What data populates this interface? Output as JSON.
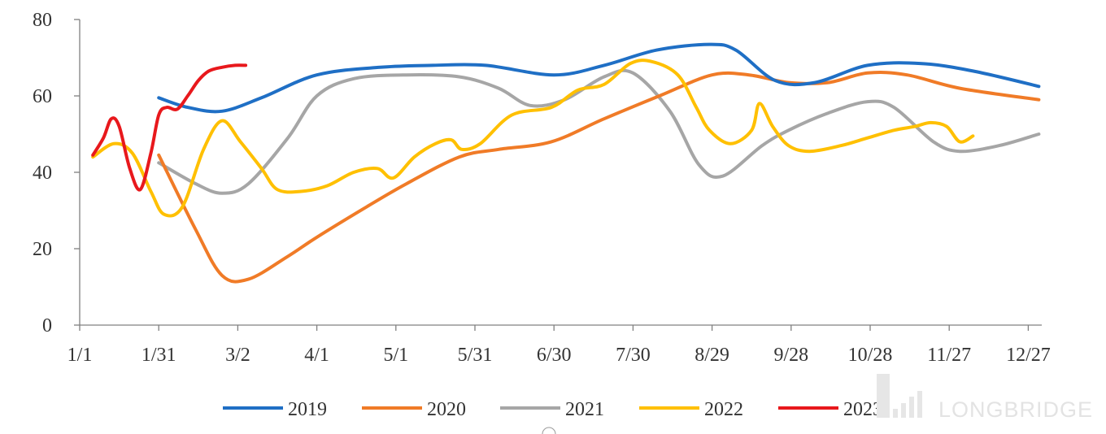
{
  "chart_data": {
    "type": "line",
    "title": "",
    "xlabel": "",
    "ylabel": "",
    "x_unit": "day of year (tick labels shown as month/day)",
    "xlim": [
      1,
      361
    ],
    "ylim": [
      0,
      80
    ],
    "x_ticks": [
      {
        "day": 1,
        "label": "1/1"
      },
      {
        "day": 31,
        "label": "1/31"
      },
      {
        "day": 61,
        "label": "3/2"
      },
      {
        "day": 91,
        "label": "4/1"
      },
      {
        "day": 121,
        "label": "5/1"
      },
      {
        "day": 151,
        "label": "5/31"
      },
      {
        "day": 181,
        "label": "6/30"
      },
      {
        "day": 211,
        "label": "7/30"
      },
      {
        "day": 241,
        "label": "8/29"
      },
      {
        "day": 271,
        "label": "9/28"
      },
      {
        "day": 301,
        "label": "10/28"
      },
      {
        "day": 331,
        "label": "11/27"
      },
      {
        "day": 361,
        "label": "12/27"
      }
    ],
    "y_ticks": [
      0,
      20,
      40,
      60,
      80
    ],
    "grid": false,
    "legend": "bottom",
    "series": [
      {
        "name": "2019",
        "color": "#1f6fc5",
        "points": [
          [
            31,
            59.5
          ],
          [
            42,
            57
          ],
          [
            55,
            56
          ],
          [
            70,
            59.5
          ],
          [
            91,
            65.5
          ],
          [
            115,
            67.5
          ],
          [
            135,
            68
          ],
          [
            155,
            68
          ],
          [
            181,
            65.5
          ],
          [
            200,
            68
          ],
          [
            220,
            72
          ],
          [
            240,
            73.5
          ],
          [
            250,
            72
          ],
          [
            265,
            64
          ],
          [
            280,
            63.5
          ],
          [
            300,
            68
          ],
          [
            320,
            68.5
          ],
          [
            340,
            66.5
          ],
          [
            365,
            62.5
          ]
        ]
      },
      {
        "name": "2020",
        "color": "#f07b27",
        "points": [
          [
            31,
            44.5
          ],
          [
            45,
            25
          ],
          [
            55,
            13
          ],
          [
            65,
            12
          ],
          [
            80,
            18
          ],
          [
            91,
            23
          ],
          [
            110,
            31
          ],
          [
            125,
            37
          ],
          [
            145,
            44
          ],
          [
            160,
            46
          ],
          [
            180,
            48
          ],
          [
            200,
            54
          ],
          [
            221,
            60
          ],
          [
            241,
            65.5
          ],
          [
            255,
            65.5
          ],
          [
            270,
            63.5
          ],
          [
            285,
            63.5
          ],
          [
            300,
            66
          ],
          [
            315,
            65.5
          ],
          [
            335,
            62
          ],
          [
            365,
            59
          ]
        ]
      },
      {
        "name": "2021",
        "color": "#a6a6a6",
        "points": [
          [
            31,
            42.5
          ],
          [
            45,
            37
          ],
          [
            55,
            34.5
          ],
          [
            65,
            37
          ],
          [
            80,
            49
          ],
          [
            91,
            60
          ],
          [
            105,
            64.5
          ],
          [
            125,
            65.5
          ],
          [
            145,
            65
          ],
          [
            160,
            62
          ],
          [
            172,
            57.5
          ],
          [
            185,
            59
          ],
          [
            200,
            65
          ],
          [
            211,
            66
          ],
          [
            225,
            56
          ],
          [
            236,
            42
          ],
          [
            245,
            39
          ],
          [
            260,
            47
          ],
          [
            270,
            51
          ],
          [
            285,
            55.5
          ],
          [
            300,
            58.5
          ],
          [
            310,
            57
          ],
          [
            325,
            48
          ],
          [
            335,
            45.5
          ],
          [
            350,
            47
          ],
          [
            365,
            50
          ]
        ]
      },
      {
        "name": "2022",
        "color": "#ffc000",
        "points": [
          [
            6,
            44
          ],
          [
            14,
            47.5
          ],
          [
            21,
            45
          ],
          [
            28,
            35
          ],
          [
            33,
            29
          ],
          [
            40,
            31
          ],
          [
            48,
            46
          ],
          [
            55,
            53.5
          ],
          [
            62,
            48
          ],
          [
            70,
            41
          ],
          [
            76,
            35.5
          ],
          [
            85,
            35
          ],
          [
            95,
            36.5
          ],
          [
            105,
            40
          ],
          [
            114,
            41
          ],
          [
            120,
            38.5
          ],
          [
            128,
            44
          ],
          [
            136,
            47.5
          ],
          [
            142,
            48.5
          ],
          [
            146,
            46
          ],
          [
            153,
            47.5
          ],
          [
            165,
            55
          ],
          [
            180,
            57
          ],
          [
            190,
            61.5
          ],
          [
            200,
            63
          ],
          [
            210,
            68.5
          ],
          [
            218,
            69
          ],
          [
            228,
            65.5
          ],
          [
            235,
            57
          ],
          [
            240,
            51
          ],
          [
            248,
            47.5
          ],
          [
            256,
            51
          ],
          [
            259,
            58
          ],
          [
            264,
            52
          ],
          [
            270,
            47
          ],
          [
            278,
            45.5
          ],
          [
            290,
            47
          ],
          [
            300,
            49
          ],
          [
            310,
            51
          ],
          [
            318,
            52
          ],
          [
            324,
            53
          ],
          [
            330,
            52
          ],
          [
            335,
            48
          ],
          [
            340,
            49.5
          ]
        ]
      },
      {
        "name": "2023",
        "color": "#e8181c",
        "points": [
          [
            6,
            44.5
          ],
          [
            10,
            49
          ],
          [
            13,
            54
          ],
          [
            16,
            52
          ],
          [
            20,
            41
          ],
          [
            24,
            35.5
          ],
          [
            28,
            45
          ],
          [
            31,
            55
          ],
          [
            34,
            57
          ],
          [
            38,
            56.5
          ],
          [
            42,
            60
          ],
          [
            46,
            64
          ],
          [
            50,
            66.5
          ],
          [
            55,
            67.5
          ],
          [
            60,
            68
          ],
          [
            64,
            68
          ]
        ]
      }
    ]
  },
  "watermark": {
    "text": "LONGBRIDGE"
  }
}
